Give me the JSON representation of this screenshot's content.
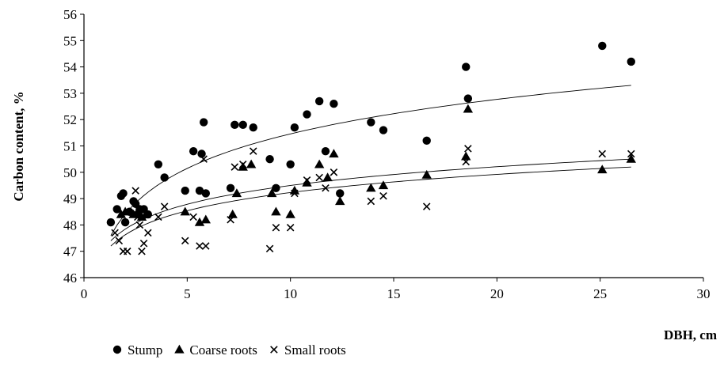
{
  "chart_data": {
    "type": "scatter",
    "title": "",
    "xlabel": "DBH, cm",
    "ylabel": "Carbon content, %",
    "xlim": [
      0,
      30
    ],
    "ylim": [
      46,
      56
    ],
    "xticks": [
      "0",
      "5",
      "10",
      "15",
      "20",
      "25",
      "30"
    ],
    "yticks": [
      "46",
      "47",
      "48",
      "49",
      "50",
      "51",
      "52",
      "53",
      "54",
      "55",
      "56"
    ],
    "grid": false,
    "legend_position": "bottom-left",
    "series": [
      {
        "name": "Stump",
        "marker": "circle",
        "points": [
          [
            1.3,
            48.1
          ],
          [
            1.6,
            48.6
          ],
          [
            1.8,
            49.1
          ],
          [
            1.9,
            49.2
          ],
          [
            2.0,
            48.1
          ],
          [
            2.2,
            48.5
          ],
          [
            2.4,
            48.9
          ],
          [
            2.5,
            48.8
          ],
          [
            2.6,
            48.4
          ],
          [
            2.7,
            48.6
          ],
          [
            2.9,
            48.6
          ],
          [
            3.1,
            48.4
          ],
          [
            3.6,
            50.3
          ],
          [
            3.9,
            49.8
          ],
          [
            4.9,
            49.3
          ],
          [
            5.3,
            50.8
          ],
          [
            5.6,
            49.3
          ],
          [
            5.7,
            50.7
          ],
          [
            5.8,
            51.9
          ],
          [
            5.9,
            49.2
          ],
          [
            7.1,
            49.4
          ],
          [
            7.3,
            51.8
          ],
          [
            7.7,
            51.8
          ],
          [
            8.2,
            51.7
          ],
          [
            9.0,
            50.5
          ],
          [
            9.3,
            49.4
          ],
          [
            10.0,
            50.3
          ],
          [
            10.2,
            51.7
          ],
          [
            10.8,
            52.2
          ],
          [
            11.4,
            52.7
          ],
          [
            11.7,
            50.8
          ],
          [
            12.1,
            52.6
          ],
          [
            12.4,
            49.2
          ],
          [
            13.9,
            51.9
          ],
          [
            14.5,
            51.6
          ],
          [
            16.6,
            51.2
          ],
          [
            18.5,
            54.0
          ],
          [
            18.6,
            52.8
          ],
          [
            25.1,
            54.8
          ],
          [
            26.5,
            54.2
          ]
        ]
      },
      {
        "name": "Coarse roots",
        "marker": "triangle",
        "points": [
          [
            1.8,
            48.4
          ],
          [
            2.0,
            48.5
          ],
          [
            2.4,
            48.4
          ],
          [
            2.6,
            48.5
          ],
          [
            2.8,
            48.3
          ],
          [
            3.0,
            48.4
          ],
          [
            4.9,
            48.5
          ],
          [
            5.6,
            48.1
          ],
          [
            5.9,
            48.2
          ],
          [
            7.2,
            48.4
          ],
          [
            7.4,
            49.2
          ],
          [
            7.7,
            50.2
          ],
          [
            8.1,
            50.3
          ],
          [
            9.1,
            49.2
          ],
          [
            9.3,
            48.5
          ],
          [
            10.0,
            48.4
          ],
          [
            10.2,
            49.3
          ],
          [
            10.8,
            49.6
          ],
          [
            11.4,
            50.3
          ],
          [
            11.8,
            49.8
          ],
          [
            12.1,
            50.7
          ],
          [
            12.4,
            48.9
          ],
          [
            13.9,
            49.4
          ],
          [
            14.5,
            49.5
          ],
          [
            16.6,
            49.9
          ],
          [
            18.5,
            50.6
          ],
          [
            18.6,
            52.4
          ],
          [
            25.1,
            50.1
          ],
          [
            26.5,
            50.5
          ]
        ]
      },
      {
        "name": "Small roots",
        "marker": "cross",
        "points": [
          [
            1.5,
            47.7
          ],
          [
            1.7,
            47.4
          ],
          [
            1.9,
            47.0
          ],
          [
            2.1,
            47.0
          ],
          [
            2.5,
            49.3
          ],
          [
            2.6,
            48.3
          ],
          [
            2.7,
            48.0
          ],
          [
            2.8,
            47.0
          ],
          [
            2.9,
            47.3
          ],
          [
            3.1,
            47.7
          ],
          [
            3.6,
            48.3
          ],
          [
            3.9,
            48.7
          ],
          [
            4.9,
            47.4
          ],
          [
            5.3,
            48.3
          ],
          [
            5.6,
            47.2
          ],
          [
            5.8,
            50.5
          ],
          [
            5.9,
            47.2
          ],
          [
            7.1,
            48.2
          ],
          [
            7.3,
            50.2
          ],
          [
            7.7,
            50.3
          ],
          [
            8.2,
            50.8
          ],
          [
            9.0,
            47.1
          ],
          [
            9.3,
            47.9
          ],
          [
            10.0,
            47.9
          ],
          [
            10.2,
            49.2
          ],
          [
            10.8,
            49.7
          ],
          [
            11.4,
            49.8
          ],
          [
            11.7,
            49.4
          ],
          [
            12.1,
            50.0
          ],
          [
            13.9,
            48.9
          ],
          [
            14.5,
            49.1
          ],
          [
            16.6,
            48.7
          ],
          [
            18.5,
            50.4
          ],
          [
            18.6,
            50.9
          ],
          [
            25.1,
            50.7
          ],
          [
            26.5,
            50.7
          ]
        ]
      }
    ],
    "trendlines": [
      {
        "series": "Stump",
        "type": "logarithmic",
        "x_range": [
          1.3,
          26.5
        ],
        "y_range": [
          47.6,
          53.3
        ]
      },
      {
        "series": "Coarse roots",
        "type": "logarithmic",
        "x_range": [
          1.3,
          26.5
        ],
        "y_range": [
          47.4,
          50.5
        ]
      },
      {
        "series": "Small roots",
        "type": "logarithmic",
        "x_range": [
          1.3,
          26.5
        ],
        "y_range": [
          47.2,
          50.2
        ]
      }
    ]
  }
}
